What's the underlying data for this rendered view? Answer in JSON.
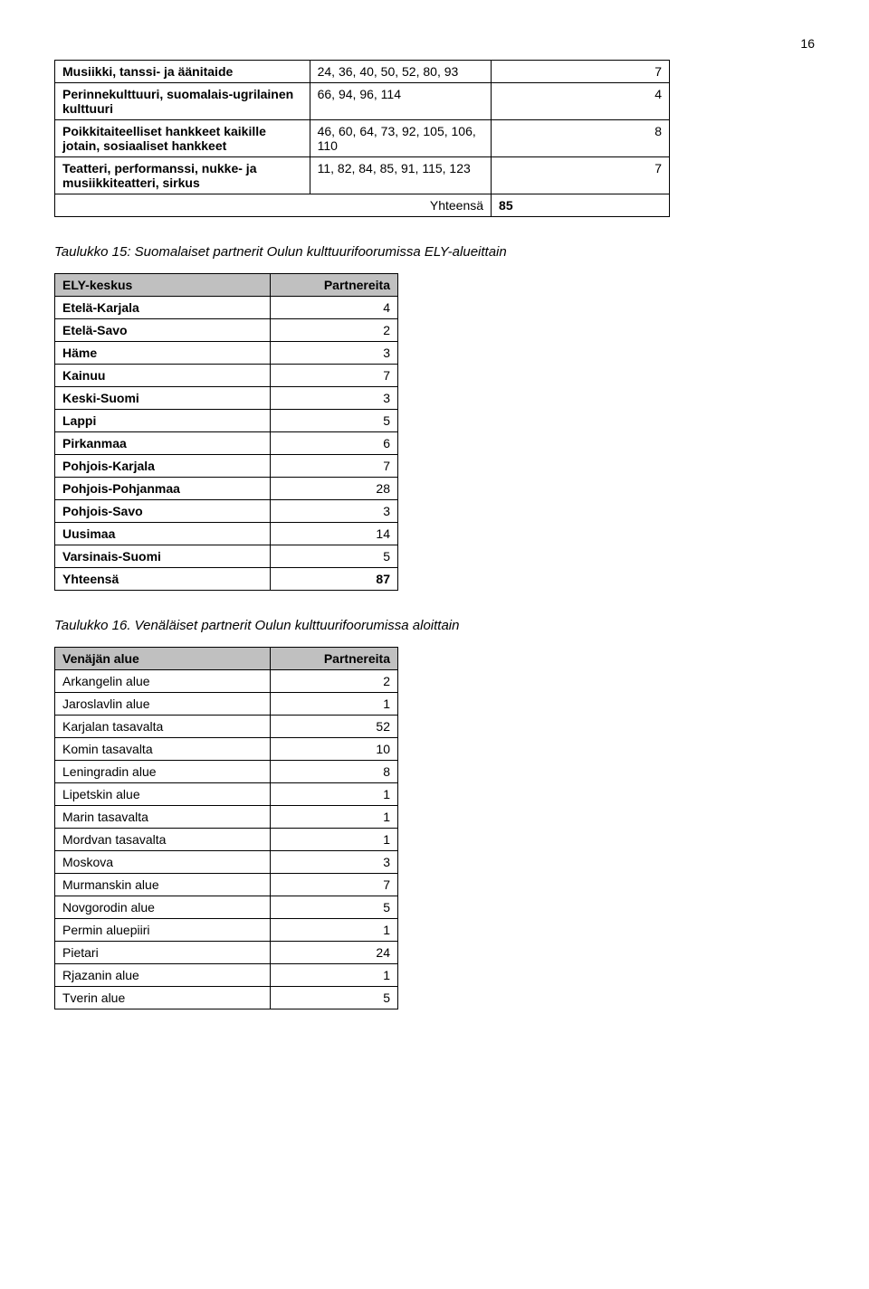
{
  "page_number": "16",
  "table1": {
    "rows": [
      {
        "label": "Musiikki, tanssi- ja äänitaide",
        "codes": "24, 36, 40, 50, 52, 80, 93",
        "val": "7"
      },
      {
        "label": "Perinnekulttuuri, suomalais-ugrilainen kulttuuri",
        "codes": "66, 94, 96, 114",
        "val": "4"
      },
      {
        "label": "Poikkitaiteelliset hankkeet kaikille jotain, sosiaaliset hankkeet",
        "codes": "46, 60, 64, 73, 92, 105, 106, 110",
        "val": "8"
      },
      {
        "label": "Teatteri, performanssi, nukke- ja musiikkiteatteri, sirkus",
        "codes": "11, 82, 84, 85, 91, 115, 123",
        "val": "7"
      }
    ],
    "total_label": "Yhteensä",
    "total_val": "85"
  },
  "caption1": "Taulukko 15: Suomalaiset partnerit Oulun kulttuurifoorumissa ELY-alueittain",
  "table2": {
    "col1": "ELY-keskus",
    "col2": "Partnereita",
    "rows": [
      {
        "k": "Etelä-Karjala",
        "v": "4"
      },
      {
        "k": "Etelä-Savo",
        "v": "2"
      },
      {
        "k": "Häme",
        "v": "3"
      },
      {
        "k": "Kainuu",
        "v": "7"
      },
      {
        "k": "Keski-Suomi",
        "v": "3"
      },
      {
        "k": "Lappi",
        "v": "5"
      },
      {
        "k": "Pirkanmaa",
        "v": "6"
      },
      {
        "k": "Pohjois-Karjala",
        "v": "7"
      },
      {
        "k": "Pohjois-Pohjanmaa",
        "v": "28"
      },
      {
        "k": "Pohjois-Savo",
        "v": "3"
      },
      {
        "k": "Uusimaa",
        "v": "14"
      },
      {
        "k": "Varsinais-Suomi",
        "v": "5"
      }
    ],
    "total_label": "Yhteensä",
    "total_val": "87"
  },
  "caption2": "Taulukko 16. Venäläiset partnerit Oulun kulttuurifoorumissa aloittain",
  "table3": {
    "col1": "Venäjän alue",
    "col2": "Partnereita",
    "rows": [
      {
        "k": "Arkangelin alue",
        "v": "2"
      },
      {
        "k": "Jaroslavlin alue",
        "v": "1"
      },
      {
        "k": "Karjalan tasavalta",
        "v": "52"
      },
      {
        "k": "Komin tasavalta",
        "v": "10"
      },
      {
        "k": "Leningradin alue",
        "v": "8"
      },
      {
        "k": "Lipetskin alue",
        "v": "1"
      },
      {
        "k": "Marin tasavalta",
        "v": "1"
      },
      {
        "k": "Mordvan tasavalta",
        "v": "1"
      },
      {
        "k": "Moskova",
        "v": "3"
      },
      {
        "k": "Murmanskin alue",
        "v": "7"
      },
      {
        "k": "Novgorodin alue",
        "v": "5"
      },
      {
        "k": "Permin aluepiiri",
        "v": "1"
      },
      {
        "k": "Pietari",
        "v": "24"
      },
      {
        "k": "Rjazanin alue",
        "v": "1"
      },
      {
        "k": "Tverin alue",
        "v": "5"
      }
    ]
  }
}
